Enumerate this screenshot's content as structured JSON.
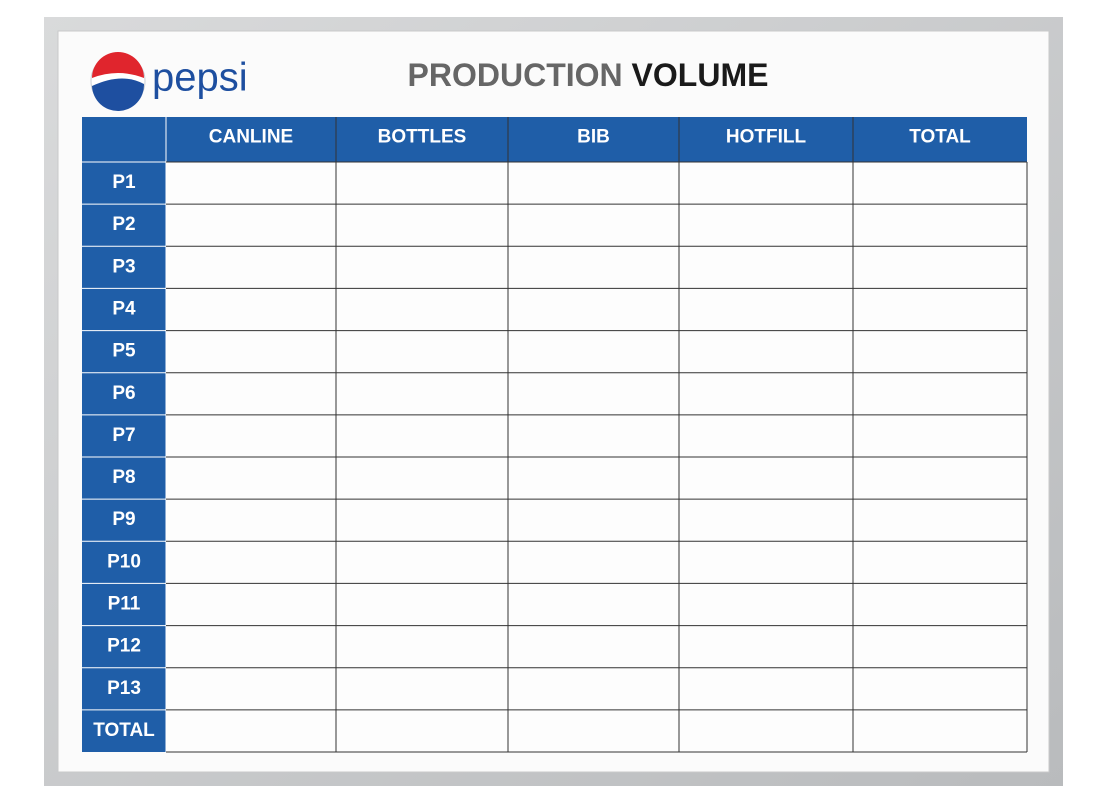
{
  "header": {
    "logo": "pepsi",
    "title_light": "PRODUCTION",
    "title_bold": "VOLUME"
  },
  "table": {
    "columns": [
      "CANLINE",
      "BOTTLES",
      "BIB",
      "HOTFILL",
      "TOTAL"
    ],
    "rows": [
      "P1",
      "P2",
      "P3",
      "P4",
      "P5",
      "P6",
      "P7",
      "P8",
      "P9",
      "P10",
      "P11",
      "P12",
      "P13",
      "TOTAL"
    ]
  }
}
